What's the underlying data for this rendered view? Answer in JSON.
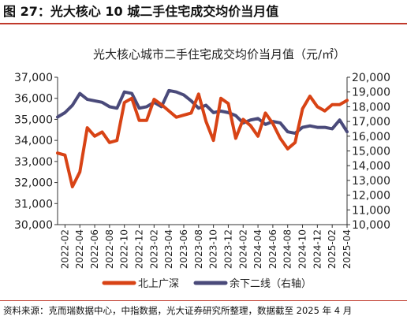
{
  "figure": {
    "label": "图 27：光大核心 10 城二手住宅成交均价当月值",
    "source": "资料来源：克而瑞数据中心，中指数据，光大证券研究所整理，数据截至 2025 年 4 月"
  },
  "colors": {
    "series1": "#d84315",
    "series2": "#4a4a7a",
    "axis": "#333333",
    "accent_rule": "#c0392b"
  },
  "chart_data": {
    "type": "line",
    "title": "光大核心城市二手住宅成交均价当月值（元/㎡）",
    "x": [
      "2022-01",
      "2022-02",
      "2022-03",
      "2022-04",
      "2022-05",
      "2022-06",
      "2022-07",
      "2022-08",
      "2022-09",
      "2022-10",
      "2022-11",
      "2022-12",
      "2023-01",
      "2023-02",
      "2023-03",
      "2023-04",
      "2023-05",
      "2023-06",
      "2023-07",
      "2023-08",
      "2023-09",
      "2023-10",
      "2023-11",
      "2023-12",
      "2024-01",
      "2024-02",
      "2024-03",
      "2024-04",
      "2024-05",
      "2024-06",
      "2024-07",
      "2024-08",
      "2024-09",
      "2024-10",
      "2024-11",
      "2024-12",
      "2025-01",
      "2025-02",
      "2025-03",
      "2025-04"
    ],
    "x_ticks": [
      "2022-02",
      "2022-04",
      "2022-06",
      "2022-08",
      "2022-10",
      "2022-12",
      "2023-02",
      "2023-04",
      "2023-06",
      "2023-08",
      "2023-10",
      "2023-12",
      "2024-02",
      "2024-04",
      "2024-06",
      "2024-08",
      "2024-10",
      "2024-12",
      "2025-02",
      "2025-04"
    ],
    "y_left": {
      "min": 30000,
      "max": 37000,
      "step": 1000,
      "ticks": [
        "30,000",
        "31,000",
        "32,000",
        "33,000",
        "34,000",
        "35,000",
        "36,000",
        "37,000"
      ]
    },
    "y_right": {
      "min": 10000,
      "max": 20000,
      "step": 1000,
      "ticks": [
        "10,000",
        "11,000",
        "12,000",
        "13,000",
        "14,000",
        "15,000",
        "16,000",
        "17,000",
        "18,000",
        "19,000",
        "20,000"
      ]
    },
    "series": [
      {
        "name": "北上广深",
        "axis": "left",
        "values": [
          33400,
          33300,
          31800,
          32500,
          34600,
          34200,
          34400,
          33900,
          34000,
          35800,
          36000,
          34950,
          34950,
          35950,
          35700,
          35400,
          35100,
          35200,
          35300,
          36200,
          34900,
          34000,
          36000,
          35750,
          34100,
          35000,
          34700,
          34200,
          35300,
          34800,
          34100,
          33600,
          33900,
          35500,
          36100,
          35600,
          35400,
          35700,
          35700,
          35900
        ]
      },
      {
        "name": "余下二线（右轴）",
        "axis": "right",
        "values": [
          17300,
          17600,
          18100,
          18900,
          18500,
          18400,
          18300,
          18000,
          17900,
          19000,
          18900,
          17900,
          18000,
          18300,
          18000,
          19100,
          19000,
          18800,
          18400,
          17900,
          18100,
          17600,
          17700,
          17600,
          17400,
          16900,
          17100,
          17200,
          16800,
          17000,
          16900,
          16300,
          16200,
          16600,
          16700,
          16600,
          16600,
          16500,
          17100,
          16300
        ]
      }
    ],
    "legend_position": "bottom"
  }
}
